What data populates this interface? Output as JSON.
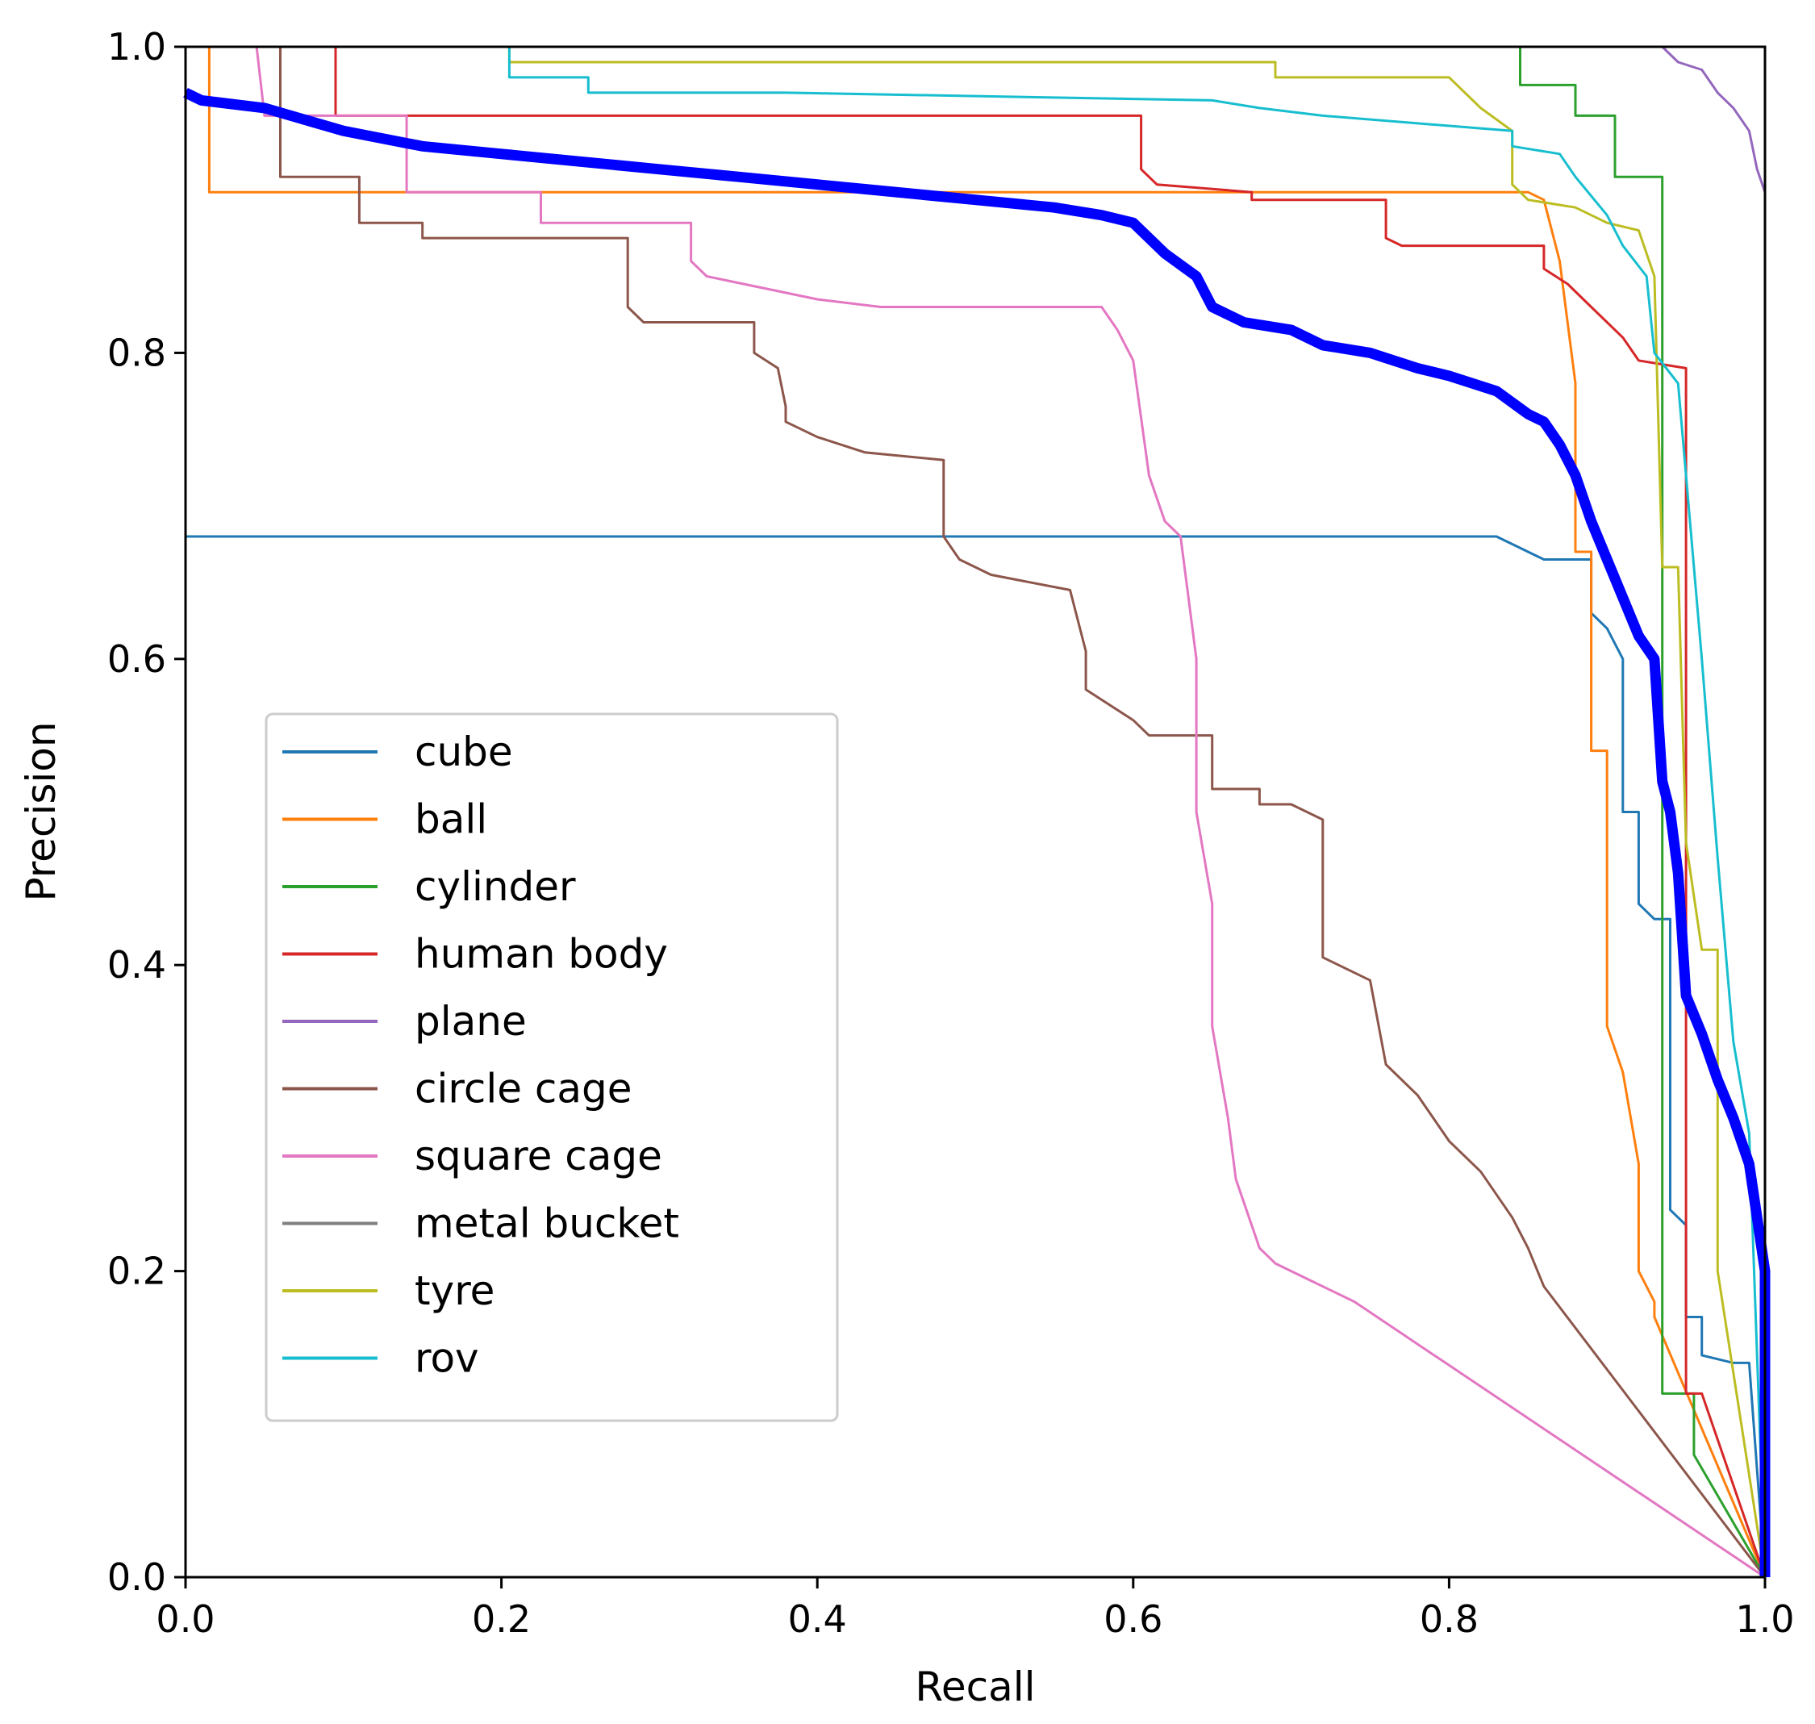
{
  "chart_data": {
    "type": "line",
    "xlabel": "Recall",
    "ylabel": "Precision",
    "xlim": [
      0.0,
      1.0
    ],
    "ylim": [
      0.0,
      1.0
    ],
    "xticks": [
      "0.0",
      "0.2",
      "0.4",
      "0.6",
      "0.8",
      "1.0"
    ],
    "yticks": [
      "0.0",
      "0.2",
      "0.4",
      "0.6",
      "0.8",
      "1.0"
    ],
    "grid": false,
    "legend_position": "center-left",
    "series": [
      {
        "name": "cube",
        "color": "#1f77b4",
        "points": [
          [
            0.0,
            0.68
          ],
          [
            0.83,
            0.68
          ],
          [
            0.84,
            0.675
          ],
          [
            0.86,
            0.665
          ],
          [
            0.89,
            0.665
          ],
          [
            0.89,
            0.63
          ],
          [
            0.9,
            0.62
          ],
          [
            0.91,
            0.6
          ],
          [
            0.91,
            0.5
          ],
          [
            0.92,
            0.5
          ],
          [
            0.92,
            0.44
          ],
          [
            0.93,
            0.43
          ],
          [
            0.94,
            0.43
          ],
          [
            0.94,
            0.24
          ],
          [
            0.95,
            0.23
          ],
          [
            0.95,
            0.17
          ],
          [
            0.96,
            0.17
          ],
          [
            0.96,
            0.145
          ],
          [
            0.98,
            0.14
          ],
          [
            0.99,
            0.14
          ],
          [
            1.0,
            0.0
          ]
        ]
      },
      {
        "name": "ball",
        "color": "#ff7f0e",
        "points": [
          [
            0.0,
            1.0
          ],
          [
            0.015,
            1.0
          ],
          [
            0.015,
            0.905
          ],
          [
            0.85,
            0.905
          ],
          [
            0.86,
            0.9
          ],
          [
            0.87,
            0.86
          ],
          [
            0.88,
            0.78
          ],
          [
            0.88,
            0.67
          ],
          [
            0.89,
            0.67
          ],
          [
            0.89,
            0.54
          ],
          [
            0.9,
            0.54
          ],
          [
            0.9,
            0.36
          ],
          [
            0.91,
            0.33
          ],
          [
            0.92,
            0.27
          ],
          [
            0.92,
            0.2
          ],
          [
            0.93,
            0.18
          ],
          [
            0.93,
            0.17
          ],
          [
            1.0,
            0.0
          ]
        ]
      },
      {
        "name": "cylinder",
        "color": "#2ca02c",
        "points": [
          [
            0.84,
            1.0
          ],
          [
            0.845,
            1.0
          ],
          [
            0.845,
            0.975
          ],
          [
            0.88,
            0.975
          ],
          [
            0.88,
            0.955
          ],
          [
            0.905,
            0.955
          ],
          [
            0.905,
            0.915
          ],
          [
            0.935,
            0.915
          ],
          [
            0.935,
            0.12
          ],
          [
            0.955,
            0.12
          ],
          [
            0.955,
            0.08
          ],
          [
            1.0,
            0.0
          ]
        ]
      },
      {
        "name": "human body",
        "color": "#d62728",
        "points": [
          [
            0.09,
            1.0
          ],
          [
            0.095,
            1.0
          ],
          [
            0.095,
            0.955
          ],
          [
            0.605,
            0.955
          ],
          [
            0.605,
            0.92
          ],
          [
            0.615,
            0.91
          ],
          [
            0.675,
            0.905
          ],
          [
            0.675,
            0.9
          ],
          [
            0.76,
            0.9
          ],
          [
            0.76,
            0.875
          ],
          [
            0.77,
            0.87
          ],
          [
            0.86,
            0.87
          ],
          [
            0.86,
            0.855
          ],
          [
            0.875,
            0.845
          ],
          [
            0.89,
            0.83
          ],
          [
            0.91,
            0.81
          ],
          [
            0.92,
            0.795
          ],
          [
            0.95,
            0.79
          ],
          [
            0.95,
            0.12
          ],
          [
            0.96,
            0.12
          ],
          [
            1.0,
            0.0
          ]
        ]
      },
      {
        "name": "plane",
        "color": "#9467bd",
        "points": [
          [
            0.935,
            1.0
          ],
          [
            0.945,
            0.99
          ],
          [
            0.96,
            0.985
          ],
          [
            0.97,
            0.97
          ],
          [
            0.98,
            0.96
          ],
          [
            0.99,
            0.945
          ],
          [
            0.995,
            0.92
          ],
          [
            1.0,
            0.905
          ]
        ]
      },
      {
        "name": "circle cage",
        "color": "#8c564b",
        "points": [
          [
            0.06,
            1.0
          ],
          [
            0.06,
            0.915
          ],
          [
            0.11,
            0.915
          ],
          [
            0.11,
            0.885
          ],
          [
            0.15,
            0.885
          ],
          [
            0.15,
            0.875
          ],
          [
            0.28,
            0.875
          ],
          [
            0.28,
            0.83
          ],
          [
            0.29,
            0.82
          ],
          [
            0.36,
            0.82
          ],
          [
            0.36,
            0.8
          ],
          [
            0.375,
            0.79
          ],
          [
            0.38,
            0.765
          ],
          [
            0.38,
            0.755
          ],
          [
            0.4,
            0.745
          ],
          [
            0.43,
            0.735
          ],
          [
            0.48,
            0.73
          ],
          [
            0.48,
            0.68
          ],
          [
            0.49,
            0.665
          ],
          [
            0.51,
            0.655
          ],
          [
            0.56,
            0.645
          ],
          [
            0.57,
            0.605
          ],
          [
            0.57,
            0.58
          ],
          [
            0.6,
            0.56
          ],
          [
            0.61,
            0.55
          ],
          [
            0.65,
            0.55
          ],
          [
            0.65,
            0.515
          ],
          [
            0.68,
            0.515
          ],
          [
            0.68,
            0.505
          ],
          [
            0.7,
            0.505
          ],
          [
            0.72,
            0.495
          ],
          [
            0.72,
            0.405
          ],
          [
            0.75,
            0.39
          ],
          [
            0.76,
            0.335
          ],
          [
            0.78,
            0.315
          ],
          [
            0.79,
            0.3
          ],
          [
            0.8,
            0.285
          ],
          [
            0.82,
            0.265
          ],
          [
            0.84,
            0.235
          ],
          [
            0.85,
            0.215
          ],
          [
            0.86,
            0.19
          ],
          [
            1.0,
            0.0
          ]
        ]
      },
      {
        "name": "square cage",
        "color": "#e377c2",
        "points": [
          [
            0.045,
            1.0
          ],
          [
            0.05,
            0.955
          ],
          [
            0.14,
            0.955
          ],
          [
            0.14,
            0.905
          ],
          [
            0.225,
            0.905
          ],
          [
            0.225,
            0.885
          ],
          [
            0.32,
            0.885
          ],
          [
            0.32,
            0.86
          ],
          [
            0.33,
            0.85
          ],
          [
            0.4,
            0.835
          ],
          [
            0.44,
            0.83
          ],
          [
            0.58,
            0.83
          ],
          [
            0.59,
            0.815
          ],
          [
            0.6,
            0.795
          ],
          [
            0.61,
            0.72
          ],
          [
            0.62,
            0.69
          ],
          [
            0.63,
            0.68
          ],
          [
            0.64,
            0.6
          ],
          [
            0.64,
            0.5
          ],
          [
            0.65,
            0.44
          ],
          [
            0.65,
            0.36
          ],
          [
            0.66,
            0.3
          ],
          [
            0.665,
            0.26
          ],
          [
            0.675,
            0.23
          ],
          [
            0.68,
            0.215
          ],
          [
            0.69,
            0.205
          ],
          [
            0.71,
            0.195
          ],
          [
            0.74,
            0.18
          ],
          [
            1.0,
            0.0
          ]
        ]
      },
      {
        "name": "metal bucket",
        "color": "#7f7f7f",
        "points": []
      },
      {
        "name": "tyre",
        "color": "#bcbd22",
        "points": [
          [
            0.205,
            1.0
          ],
          [
            0.205,
            0.99
          ],
          [
            0.69,
            0.99
          ],
          [
            0.69,
            0.98
          ],
          [
            0.8,
            0.98
          ],
          [
            0.82,
            0.96
          ],
          [
            0.84,
            0.945
          ],
          [
            0.84,
            0.91
          ],
          [
            0.85,
            0.9
          ],
          [
            0.88,
            0.895
          ],
          [
            0.9,
            0.885
          ],
          [
            0.92,
            0.88
          ],
          [
            0.93,
            0.85
          ],
          [
            0.935,
            0.66
          ],
          [
            0.945,
            0.66
          ],
          [
            0.95,
            0.48
          ],
          [
            0.96,
            0.41
          ],
          [
            0.97,
            0.41
          ],
          [
            0.97,
            0.2
          ],
          [
            1.0,
            0.0
          ]
        ]
      },
      {
        "name": "rov",
        "color": "#17becf",
        "points": [
          [
            0.205,
            1.0
          ],
          [
            0.205,
            0.98
          ],
          [
            0.255,
            0.98
          ],
          [
            0.255,
            0.97
          ],
          [
            0.38,
            0.97
          ],
          [
            0.65,
            0.965
          ],
          [
            0.68,
            0.96
          ],
          [
            0.72,
            0.955
          ],
          [
            0.84,
            0.945
          ],
          [
            0.84,
            0.935
          ],
          [
            0.87,
            0.93
          ],
          [
            0.88,
            0.915
          ],
          [
            0.9,
            0.89
          ],
          [
            0.91,
            0.87
          ],
          [
            0.925,
            0.85
          ],
          [
            0.93,
            0.8
          ],
          [
            0.945,
            0.78
          ],
          [
            0.96,
            0.6
          ],
          [
            0.97,
            0.47
          ],
          [
            0.98,
            0.35
          ],
          [
            0.99,
            0.29
          ],
          [
            1.0,
            0.0
          ]
        ]
      },
      {
        "name": "",
        "color": "#0000ff",
        "thick": true,
        "points": [
          [
            0.0,
            0.97
          ],
          [
            0.01,
            0.965
          ],
          [
            0.05,
            0.96
          ],
          [
            0.1,
            0.945
          ],
          [
            0.15,
            0.935
          ],
          [
            0.2,
            0.93
          ],
          [
            0.25,
            0.925
          ],
          [
            0.3,
            0.92
          ],
          [
            0.35,
            0.915
          ],
          [
            0.4,
            0.91
          ],
          [
            0.45,
            0.905
          ],
          [
            0.5,
            0.9
          ],
          [
            0.55,
            0.895
          ],
          [
            0.58,
            0.89
          ],
          [
            0.6,
            0.885
          ],
          [
            0.62,
            0.865
          ],
          [
            0.64,
            0.85
          ],
          [
            0.65,
            0.83
          ],
          [
            0.67,
            0.82
          ],
          [
            0.7,
            0.815
          ],
          [
            0.72,
            0.805
          ],
          [
            0.75,
            0.8
          ],
          [
            0.78,
            0.79
          ],
          [
            0.8,
            0.785
          ],
          [
            0.83,
            0.775
          ],
          [
            0.85,
            0.76
          ],
          [
            0.86,
            0.755
          ],
          [
            0.87,
            0.74
          ],
          [
            0.88,
            0.72
          ],
          [
            0.89,
            0.69
          ],
          [
            0.9,
            0.665
          ],
          [
            0.91,
            0.64
          ],
          [
            0.92,
            0.615
          ],
          [
            0.93,
            0.6
          ],
          [
            0.935,
            0.52
          ],
          [
            0.94,
            0.5
          ],
          [
            0.945,
            0.46
          ],
          [
            0.95,
            0.38
          ],
          [
            0.96,
            0.355
          ],
          [
            0.97,
            0.325
          ],
          [
            0.98,
            0.3
          ],
          [
            0.99,
            0.27
          ],
          [
            1.0,
            0.2
          ],
          [
            1.0,
            0.0
          ]
        ]
      }
    ]
  }
}
